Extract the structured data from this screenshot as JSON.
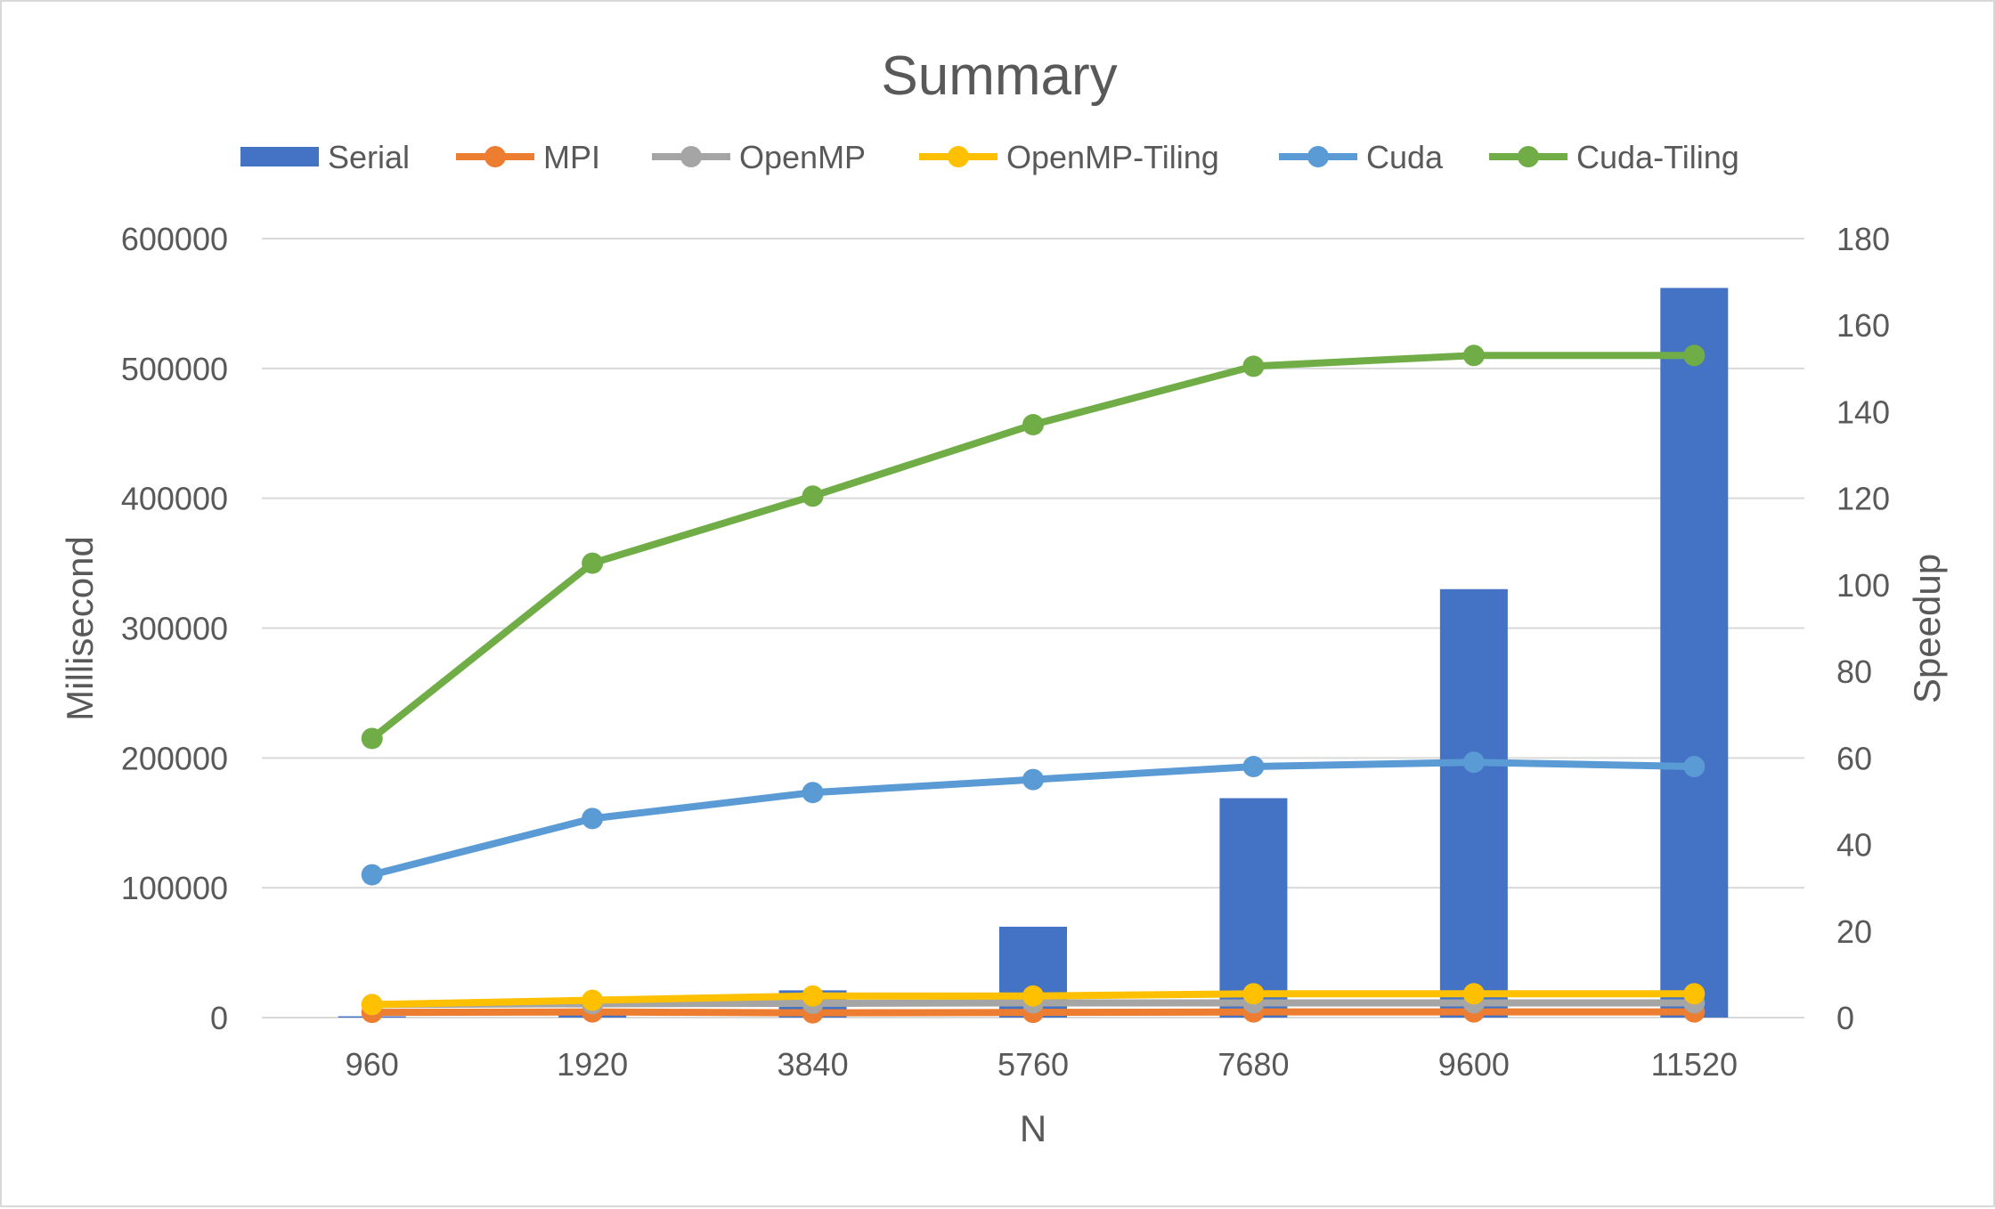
{
  "chart_data": {
    "type": "bar",
    "title": "Summary",
    "xlabel": "N",
    "ylabel": "Millisecond",
    "y2label": "Speedup",
    "categories": [
      "960",
      "1920",
      "3840",
      "5760",
      "7680",
      "9600",
      "11520"
    ],
    "ylim": [
      0,
      600000
    ],
    "y2lim": [
      0,
      180
    ],
    "yticks": [
      "0",
      "100000",
      "200000",
      "300000",
      "400000",
      "500000",
      "600000"
    ],
    "y2ticks": [
      "0",
      "20",
      "40",
      "60",
      "80",
      "100",
      "120",
      "140",
      "160",
      "180"
    ],
    "grid": true,
    "legend": "top",
    "series": [
      {
        "name": "Serial",
        "kind": "bar",
        "axis": "left",
        "color": "#4472c4",
        "values": [
          1000,
          3000,
          21000,
          70000,
          169000,
          330000,
          562000
        ]
      },
      {
        "name": "MPI",
        "kind": "line",
        "axis": "right",
        "color": "#ed7d31",
        "values": [
          1.2,
          1.3,
          1.1,
          1.2,
          1.3,
          1.3,
          1.3
        ]
      },
      {
        "name": "OpenMP",
        "kind": "line",
        "axis": "right",
        "color": "#a5a5a5",
        "values": [
          3.0,
          3.2,
          3.3,
          3.4,
          3.4,
          3.4,
          3.4
        ]
      },
      {
        "name": "OpenMP-Tiling",
        "kind": "line",
        "axis": "right",
        "color": "#ffc000",
        "values": [
          3.0,
          4.0,
          5.0,
          5.0,
          5.5,
          5.5,
          5.5
        ]
      },
      {
        "name": "Cuda",
        "kind": "line",
        "axis": "right",
        "color": "#5b9bd5",
        "values": [
          33,
          46,
          52,
          55,
          58,
          59,
          58
        ]
      },
      {
        "name": "Cuda-Tiling",
        "kind": "line",
        "axis": "right",
        "color": "#70ad47",
        "values": [
          64.5,
          105,
          120.5,
          137,
          150.5,
          153,
          153
        ]
      }
    ]
  }
}
